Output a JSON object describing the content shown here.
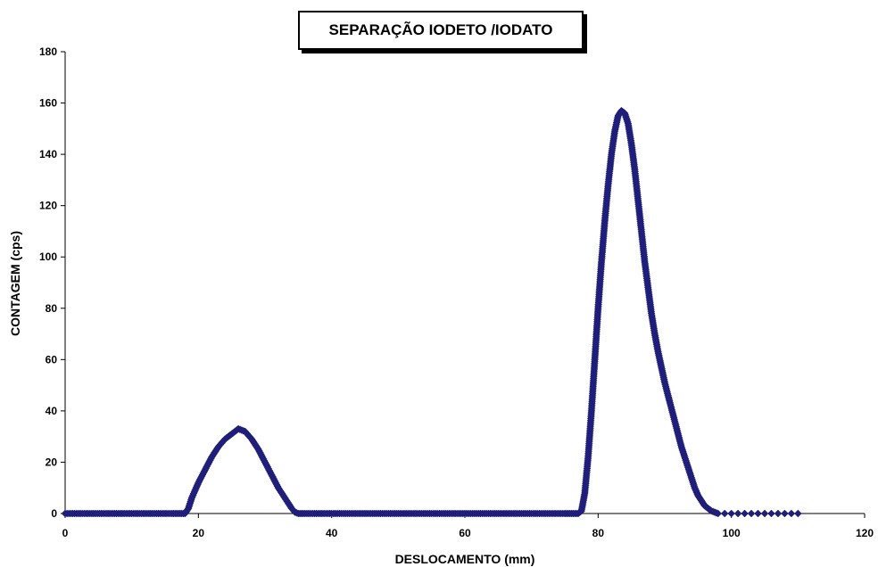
{
  "chart_data": {
    "type": "scatter",
    "title": "SEPARAÇÃO IODETO /IODATO",
    "xlabel": "DESLOCAMENTO (mm)",
    "ylabel": "CONTAGEM (cps)",
    "xlim": [
      0,
      120
    ],
    "ylim": [
      0,
      180
    ],
    "x_ticks": [
      0,
      20,
      40,
      60,
      80,
      100,
      120
    ],
    "y_ticks": [
      0,
      20,
      40,
      60,
      80,
      100,
      120,
      140,
      160,
      180
    ],
    "grid": false,
    "legend": "none",
    "marker_color": "#1f1f7a",
    "marker": "diamond",
    "series": [
      {
        "x": [
          0,
          2,
          4,
          6,
          8,
          10,
          12,
          14,
          16,
          17,
          18,
          18.5,
          19,
          19.5,
          20,
          21,
          22,
          23,
          24,
          25,
          26,
          27,
          28,
          29,
          30,
          31,
          32,
          33,
          34,
          34.5,
          35,
          36,
          38,
          40,
          45,
          50,
          55,
          60,
          65,
          70,
          75,
          76,
          77,
          77.5,
          78,
          78.5,
          79,
          79.5,
          80,
          80.5,
          81,
          81.5,
          82,
          82.5,
          83,
          83.5,
          84,
          84.5,
          85,
          85.5,
          86,
          86.5,
          87,
          87.5,
          88,
          88.5,
          89,
          89.5,
          90,
          90.5,
          91,
          91.5,
          92,
          92.5,
          93,
          93.5,
          94,
          94.5,
          95,
          95.5,
          96,
          96.5,
          97,
          97.5,
          98,
          99,
          100,
          101,
          102,
          103,
          104,
          105,
          106,
          107,
          108,
          109,
          110
        ],
        "y": [
          0,
          0,
          0,
          0,
          0,
          0,
          0,
          0,
          0,
          0,
          0,
          2,
          6,
          9,
          12,
          17,
          22,
          26,
          29,
          31,
          33,
          32,
          29,
          25,
          20,
          15,
          10,
          6,
          2,
          0.5,
          0,
          0,
          0,
          0,
          0,
          0,
          0,
          0,
          0,
          0,
          0,
          0,
          0,
          1,
          8,
          22,
          40,
          60,
          80,
          98,
          114,
          128,
          140,
          149,
          155,
          157,
          156,
          152,
          144,
          134,
          122,
          110,
          98,
          88,
          78,
          70,
          63,
          57,
          51,
          46,
          41,
          36,
          31,
          26,
          22,
          18,
          14,
          10,
          7,
          5,
          3,
          2,
          1,
          0.5,
          0,
          0,
          0,
          0,
          0,
          0,
          0,
          0,
          0,
          0,
          0,
          0,
          0
        ]
      }
    ]
  }
}
